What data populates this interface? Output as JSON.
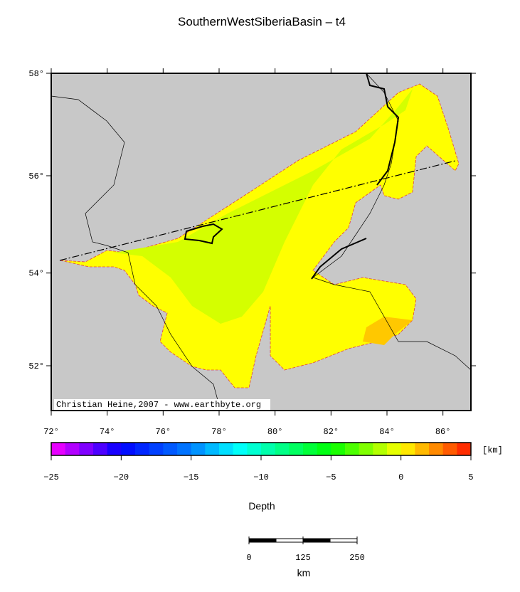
{
  "title": "SouthernWestSiberiaBasin – t4",
  "map": {
    "xlim": [
      72,
      87
    ],
    "ylim": [
      51,
      58
    ],
    "xticks": [
      {
        "value": 72,
        "label": "72°"
      },
      {
        "value": 74,
        "label": "74°"
      },
      {
        "value": 76,
        "label": "76°"
      },
      {
        "value": 78,
        "label": "78°"
      },
      {
        "value": 80,
        "label": "80°"
      },
      {
        "value": 82,
        "label": "82°"
      },
      {
        "value": 84,
        "label": "84°"
      },
      {
        "value": 86,
        "label": "86°"
      }
    ],
    "yticks": [
      {
        "value": 52,
        "label": "52°"
      },
      {
        "value": 54,
        "label": "54°"
      },
      {
        "value": 56,
        "label": "56°"
      },
      {
        "value": 58,
        "label": "58°"
      }
    ],
    "credit": "Christian Heine,2007 - www.earthbyte.org"
  },
  "colorbar": {
    "lim": [
      -25,
      5
    ],
    "ticks": [
      {
        "value": -25,
        "label": "−25"
      },
      {
        "value": -20,
        "label": "−20"
      },
      {
        "value": -15,
        "label": "−15"
      },
      {
        "value": -10,
        "label": "−10"
      },
      {
        "value": -5,
        "label": "−5"
      },
      0,
      5
    ],
    "unit": "[km]",
    "label": "Depth"
  },
  "scale_bar": {
    "ticks": [
      0,
      125,
      250
    ],
    "unit": "km"
  }
}
